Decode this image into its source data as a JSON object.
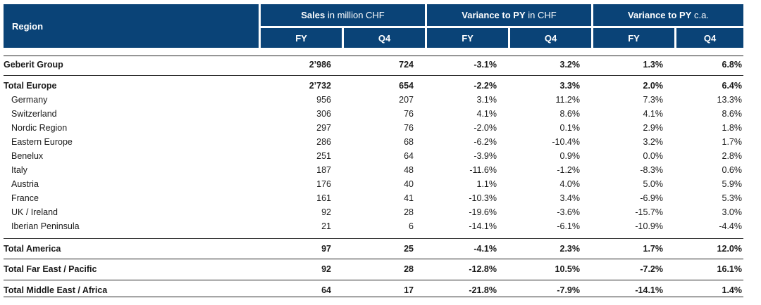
{
  "header": {
    "region": "Region",
    "groups": [
      {
        "bold": "Sales",
        "rest": " in million CHF"
      },
      {
        "bold": "Variance to PY",
        "rest": " in CHF"
      },
      {
        "bold": "Variance to PY",
        "rest": " c.a."
      }
    ],
    "sub": [
      "FY",
      "Q4",
      "FY",
      "Q4",
      "FY",
      "Q4"
    ]
  },
  "rows": [
    {
      "label": "Geberit Group",
      "type": "total",
      "values": [
        "2’986",
        "724",
        "-3.1%",
        "3.2%",
        "1.3%",
        "6.8%"
      ]
    },
    {
      "label": "Total Europe",
      "type": "total",
      "values": [
        "2’732",
        "654",
        "-2.2%",
        "3.3%",
        "2.0%",
        "6.4%"
      ]
    },
    {
      "label": "Germany",
      "type": "sub",
      "values": [
        "956",
        "207",
        "3.1%",
        "11.2%",
        "7.3%",
        "13.3%"
      ]
    },
    {
      "label": "Switzerland",
      "type": "sub",
      "values": [
        "306",
        "76",
        "4.1%",
        "8.6%",
        "4.1%",
        "8.6%"
      ]
    },
    {
      "label": "Nordic Region",
      "type": "sub",
      "values": [
        "297",
        "76",
        "-2.0%",
        "0.1%",
        "2.9%",
        "1.8%"
      ]
    },
    {
      "label": "Eastern Europe",
      "type": "sub",
      "values": [
        "286",
        "68",
        "-6.2%",
        "-10.4%",
        "3.2%",
        "1.7%"
      ]
    },
    {
      "label": "Benelux",
      "type": "sub",
      "values": [
        "251",
        "64",
        "-3.9%",
        "0.9%",
        "0.0%",
        "2.8%"
      ]
    },
    {
      "label": "Italy",
      "type": "sub",
      "values": [
        "187",
        "48",
        "-11.6%",
        "-1.2%",
        "-8.3%",
        "0.6%"
      ]
    },
    {
      "label": "Austria",
      "type": "sub",
      "values": [
        "176",
        "40",
        "1.1%",
        "4.0%",
        "5.0%",
        "5.9%"
      ]
    },
    {
      "label": "France",
      "type": "sub",
      "values": [
        "161",
        "41",
        "-10.3%",
        "3.4%",
        "-6.9%",
        "5.3%"
      ]
    },
    {
      "label": "UK / Ireland",
      "type": "sub",
      "values": [
        "92",
        "28",
        "-19.6%",
        "-3.6%",
        "-15.7%",
        "3.0%"
      ]
    },
    {
      "label": "Iberian Peninsula",
      "type": "sub",
      "values": [
        "21",
        "6",
        "-14.1%",
        "-6.1%",
        "-10.9%",
        "-4.4%"
      ]
    },
    {
      "label": "Total America",
      "type": "total",
      "values": [
        "97",
        "25",
        "-4.1%",
        "2.3%",
        "1.7%",
        "12.0%"
      ]
    },
    {
      "label": "Total Far East / Pacific",
      "type": "total",
      "values": [
        "92",
        "28",
        "-12.8%",
        "10.5%",
        "-7.2%",
        "16.1%"
      ]
    },
    {
      "label": "Total Middle East / Africa",
      "type": "total",
      "values": [
        "64",
        "17",
        "-21.8%",
        "-7.9%",
        "-14.1%",
        "1.4%"
      ]
    }
  ]
}
